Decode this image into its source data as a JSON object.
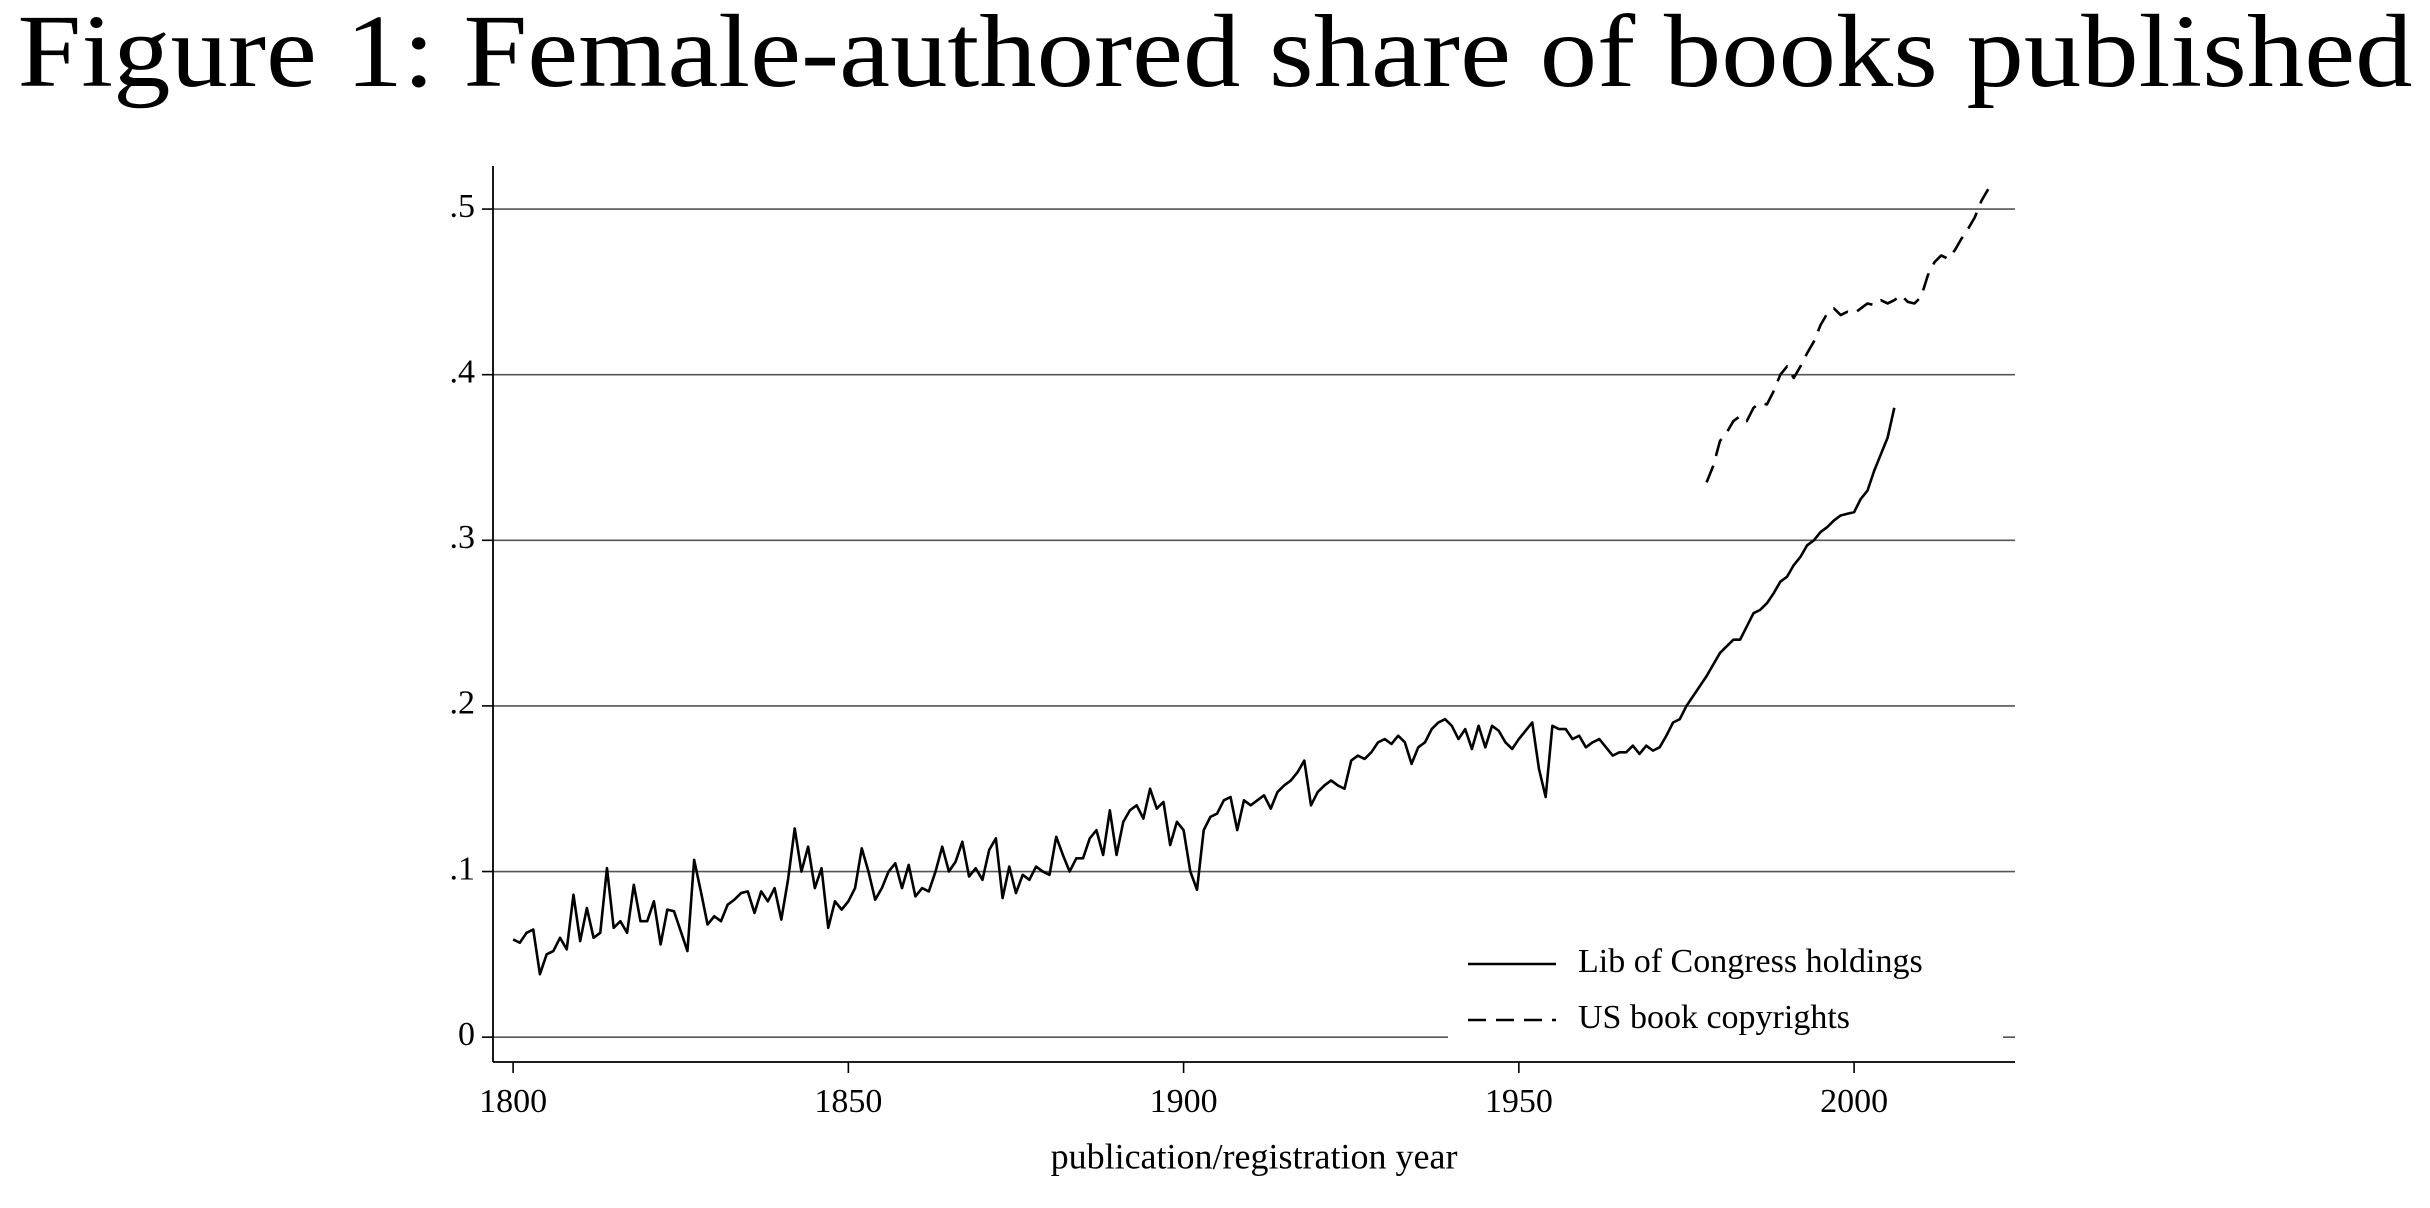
{
  "chart_data": {
    "type": "line",
    "title": "Figure 1: Female-authored share of books published",
    "x_label": "publication/registration year",
    "xlim": [
      1797,
      2024
    ],
    "xticks": [
      1800,
      1850,
      1900,
      1950,
      2000
    ],
    "ylim": [
      -0.015,
      0.526
    ],
    "yticks": [
      0,
      {
        "value": 0.1,
        "label": ".1"
      },
      {
        "value": 0.2,
        "label": ".2"
      },
      {
        "value": 0.3,
        "label": ".3"
      },
      {
        "value": 0.4,
        "label": ".4"
      },
      {
        "value": 0.5,
        "label": ".5"
      }
    ],
    "grid": true,
    "legend_position": "lower right",
    "series": [
      {
        "name": "Lib of Congress holdings",
        "color": "#000000",
        "line_style": "solid",
        "x": [
          1800,
          1801,
          1802,
          1803,
          1804,
          1805,
          1806,
          1807,
          1808,
          1809,
          1810,
          1811,
          1812,
          1813,
          1814,
          1815,
          1816,
          1817,
          1818,
          1819,
          1820,
          1821,
          1822,
          1823,
          1824,
          1825,
          1826,
          1827,
          1828,
          1829,
          1830,
          1831,
          1832,
          1833,
          1834,
          1835,
          1836,
          1837,
          1838,
          1839,
          1840,
          1841,
          1842,
          1843,
          1844,
          1845,
          1846,
          1847,
          1848,
          1849,
          1850,
          1851,
          1852,
          1853,
          1854,
          1855,
          1856,
          1857,
          1858,
          1859,
          1860,
          1861,
          1862,
          1863,
          1864,
          1865,
          1866,
          1867,
          1868,
          1869,
          1870,
          1871,
          1872,
          1873,
          1874,
          1875,
          1876,
          1877,
          1878,
          1879,
          1880,
          1881,
          1882,
          1883,
          1884,
          1885,
          1886,
          1887,
          1888,
          1889,
          1890,
          1891,
          1892,
          1893,
          1894,
          1895,
          1896,
          1897,
          1898,
          1899,
          1900,
          1901,
          1902,
          1903,
          1904,
          1905,
          1906,
          1907,
          1908,
          1909,
          1910,
          1911,
          1912,
          1913,
          1914,
          1915,
          1916,
          1917,
          1918,
          1919,
          1920,
          1921,
          1922,
          1923,
          1924,
          1925,
          1926,
          1927,
          1928,
          1929,
          1930,
          1931,
          1932,
          1933,
          1934,
          1935,
          1936,
          1937,
          1938,
          1939,
          1940,
          1941,
          1942,
          1943,
          1944,
          1945,
          1946,
          1947,
          1948,
          1949,
          1950,
          1951,
          1952,
          1953,
          1954,
          1955,
          1956,
          1957,
          1958,
          1959,
          1960,
          1961,
          1962,
          1963,
          1964,
          1965,
          1966,
          1967,
          1968,
          1969,
          1970,
          1971,
          1972,
          1973,
          1974,
          1975,
          1976,
          1977,
          1978,
          1979,
          1980,
          1981,
          1982,
          1983,
          1984,
          1985,
          1986,
          1987,
          1988,
          1989,
          1990,
          1991,
          1992,
          1993,
          1994,
          1995,
          1996,
          1997,
          1998,
          1999,
          2000,
          2001,
          2002,
          2003,
          2004,
          2005,
          2006
        ],
        "values": [
          0.059,
          0.057,
          0.063,
          0.065,
          0.038,
          0.05,
          0.052,
          0.06,
          0.053,
          0.086,
          0.058,
          0.078,
          0.06,
          0.063,
          0.102,
          0.066,
          0.07,
          0.063,
          0.092,
          0.07,
          0.07,
          0.082,
          0.056,
          0.077,
          0.076,
          0.064,
          0.052,
          0.107,
          0.088,
          0.068,
          0.073,
          0.07,
          0.08,
          0.083,
          0.087,
          0.088,
          0.075,
          0.088,
          0.082,
          0.09,
          0.071,
          0.095,
          0.126,
          0.1,
          0.115,
          0.09,
          0.102,
          0.066,
          0.082,
          0.077,
          0.082,
          0.09,
          0.114,
          0.1,
          0.083,
          0.09,
          0.1,
          0.105,
          0.09,
          0.104,
          0.085,
          0.09,
          0.088,
          0.1,
          0.115,
          0.1,
          0.106,
          0.118,
          0.097,
          0.102,
          0.095,
          0.113,
          0.12,
          0.084,
          0.103,
          0.087,
          0.098,
          0.095,
          0.103,
          0.1,
          0.098,
          0.121,
          0.11,
          0.1,
          0.108,
          0.108,
          0.12,
          0.125,
          0.11,
          0.137,
          0.11,
          0.13,
          0.137,
          0.14,
          0.132,
          0.15,
          0.138,
          0.142,
          0.116,
          0.13,
          0.125,
          0.1,
          0.089,
          0.125,
          0.133,
          0.135,
          0.143,
          0.145,
          0.125,
          0.143,
          0.14,
          0.143,
          0.146,
          0.138,
          0.148,
          0.152,
          0.155,
          0.16,
          0.167,
          0.14,
          0.148,
          0.152,
          0.155,
          0.152,
          0.15,
          0.167,
          0.17,
          0.168,
          0.172,
          0.178,
          0.18,
          0.177,
          0.182,
          0.178,
          0.165,
          0.175,
          0.178,
          0.186,
          0.19,
          0.192,
          0.188,
          0.18,
          0.186,
          0.174,
          0.188,
          0.175,
          0.188,
          0.185,
          0.178,
          0.174,
          0.18,
          0.185,
          0.19,
          0.162,
          0.145,
          0.188,
          0.186,
          0.186,
          0.18,
          0.182,
          0.175,
          0.178,
          0.18,
          0.175,
          0.17,
          0.172,
          0.172,
          0.176,
          0.171,
          0.176,
          0.173,
          0.175,
          0.182,
          0.19,
          0.192,
          0.2,
          0.206,
          0.212,
          0.218,
          0.225,
          0.232,
          0.236,
          0.24,
          0.24,
          0.248,
          0.256,
          0.258,
          0.262,
          0.268,
          0.275,
          0.278,
          0.285,
          0.29,
          0.297,
          0.3,
          0.305,
          0.308,
          0.312,
          0.315,
          0.316,
          0.317,
          0.325,
          0.33,
          0.342,
          0.352,
          0.362,
          0.38
        ]
      },
      {
        "name": "US book copyrights",
        "color": "#000000",
        "line_style": "dashed",
        "x": [
          1978,
          1979,
          1980,
          1981,
          1982,
          1983,
          1984,
          1985,
          1986,
          1987,
          1988,
          1989,
          1990,
          1991,
          1992,
          1993,
          1994,
          1995,
          1996,
          1997,
          1998,
          1999,
          2000,
          2001,
          2002,
          2003,
          2004,
          2005,
          2006,
          2007,
          2008,
          2009,
          2010,
          2011,
          2012,
          2013,
          2014,
          2015,
          2016,
          2017,
          2018,
          2019,
          2020
        ],
        "values": [
          0.335,
          0.345,
          0.36,
          0.365,
          0.372,
          0.375,
          0.372,
          0.38,
          0.383,
          0.382,
          0.39,
          0.4,
          0.405,
          0.398,
          0.405,
          0.413,
          0.42,
          0.43,
          0.437,
          0.44,
          0.436,
          0.438,
          0.437,
          0.44,
          0.443,
          0.442,
          0.445,
          0.443,
          0.445,
          0.448,
          0.444,
          0.443,
          0.447,
          0.46,
          0.468,
          0.472,
          0.47,
          0.475,
          0.482,
          0.488,
          0.495,
          0.505,
          0.512
        ]
      }
    ]
  }
}
